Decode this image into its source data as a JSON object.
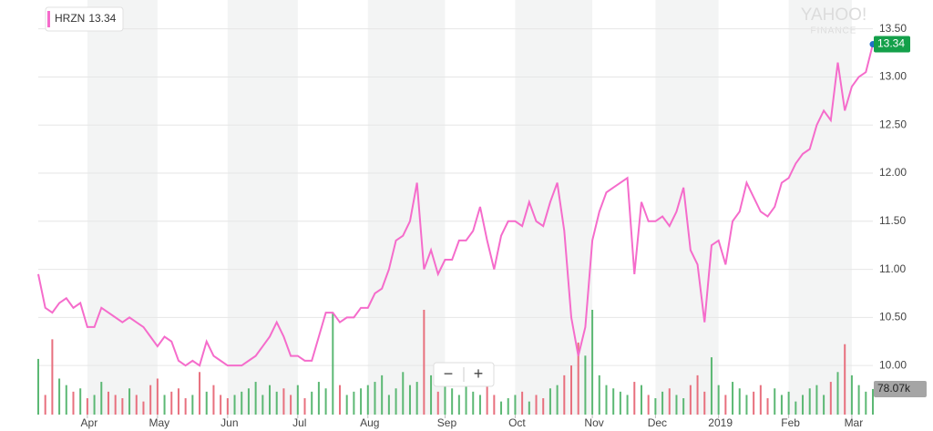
{
  "chart_data": {
    "type": "line",
    "watermark": [
      "YAHOO!",
      "FINANCE"
    ],
    "xlim": [
      0,
      119
    ],
    "xticks": [
      {
        "value": 7,
        "label": "Apr"
      },
      {
        "value": 17,
        "label": "May"
      },
      {
        "value": 27,
        "label": "Jun"
      },
      {
        "value": 37,
        "label": "Jul"
      },
      {
        "value": 47,
        "label": "Aug"
      },
      {
        "value": 58,
        "label": "Sep"
      },
      {
        "value": 68,
        "label": "Oct"
      },
      {
        "value": 79,
        "label": "Nov"
      },
      {
        "value": 88,
        "label": "Dec"
      },
      {
        "value": 97,
        "label": "2019"
      },
      {
        "value": 107,
        "label": "Feb"
      },
      {
        "value": 116,
        "label": "Mar"
      }
    ],
    "ylim": [
      9.49,
      13.8
    ],
    "yticks": [
      {
        "value": 10,
        "label": "10.00"
      },
      {
        "value": 10.5,
        "label": "10.50"
      },
      {
        "value": 11,
        "label": "11.00"
      },
      {
        "value": 11.5,
        "label": "11.50"
      },
      {
        "value": 12,
        "label": "12.00"
      },
      {
        "value": 12.5,
        "label": "12.50"
      },
      {
        "value": 13,
        "label": "13.00"
      },
      {
        "value": 13.5,
        "label": "13.50"
      }
    ],
    "grid": true,
    "series": [
      {
        "name": "HRZN",
        "color": "#f56ccb",
        "values": [
          10.95,
          10.6,
          10.55,
          10.65,
          10.7,
          10.6,
          10.65,
          10.4,
          10.4,
          10.6,
          10.55,
          10.5,
          10.45,
          10.5,
          10.45,
          10.4,
          10.3,
          10.2,
          10.3,
          10.25,
          10.05,
          10.0,
          10.05,
          10.0,
          10.25,
          10.1,
          10.05,
          10.0,
          10.0,
          10.0,
          10.05,
          10.1,
          10.2,
          10.3,
          10.45,
          10.3,
          10.1,
          10.1,
          10.05,
          10.05,
          10.3,
          10.55,
          10.55,
          10.45,
          10.5,
          10.5,
          10.6,
          10.6,
          10.75,
          10.8,
          11.0,
          11.3,
          11.35,
          11.5,
          11.9,
          11.0,
          11.2,
          10.95,
          11.1,
          11.1,
          11.3,
          11.3,
          11.4,
          11.65,
          11.3,
          11.0,
          11.35,
          11.5,
          11.5,
          11.45,
          11.7,
          11.5,
          11.45,
          11.7,
          11.9,
          11.4,
          10.5,
          10.1,
          10.4,
          11.3,
          11.6,
          11.8,
          11.85,
          11.9,
          11.95,
          10.95,
          11.7,
          11.5,
          11.5,
          11.55,
          11.45,
          11.6,
          11.85,
          11.2,
          11.05,
          10.45,
          11.25,
          11.3,
          11.05,
          11.5,
          11.6,
          11.9,
          11.75,
          11.6,
          11.55,
          11.65,
          11.9,
          11.95,
          12.1,
          12.2,
          12.25,
          12.5,
          12.65,
          12.55,
          13.15,
          12.65,
          12.9,
          13.0,
          13.05,
          13.34
        ]
      }
    ],
    "volume": {
      "up_color": "#5cb874",
      "down_color": "#e8707e",
      "label": "78.07k",
      "values": [
        170,
        60,
        230,
        110,
        90,
        70,
        80,
        50,
        60,
        100,
        70,
        60,
        50,
        80,
        60,
        40,
        90,
        110,
        60,
        70,
        80,
        50,
        60,
        130,
        70,
        90,
        60,
        50,
        60,
        70,
        80,
        100,
        60,
        90,
        70,
        80,
        60,
        90,
        50,
        70,
        100,
        80,
        310,
        90,
        60,
        70,
        80,
        90,
        100,
        120,
        60,
        80,
        130,
        90,
        100,
        320,
        120,
        70,
        90,
        80,
        60,
        110,
        70,
        60,
        90,
        60,
        40,
        50,
        60,
        70,
        40,
        60,
        50,
        80,
        90,
        120,
        150,
        220,
        180,
        320,
        120,
        90,
        80,
        70,
        60,
        100,
        90,
        60,
        50,
        70,
        80,
        60,
        50,
        90,
        120,
        70,
        175,
        90,
        60,
        100,
        80,
        60,
        70,
        90,
        50,
        80,
        60,
        70,
        40,
        60,
        80,
        90,
        60,
        100,
        130,
        215,
        120,
        90,
        70,
        78.07
      ]
    },
    "zoom": [
      "−",
      "+"
    ]
  }
}
